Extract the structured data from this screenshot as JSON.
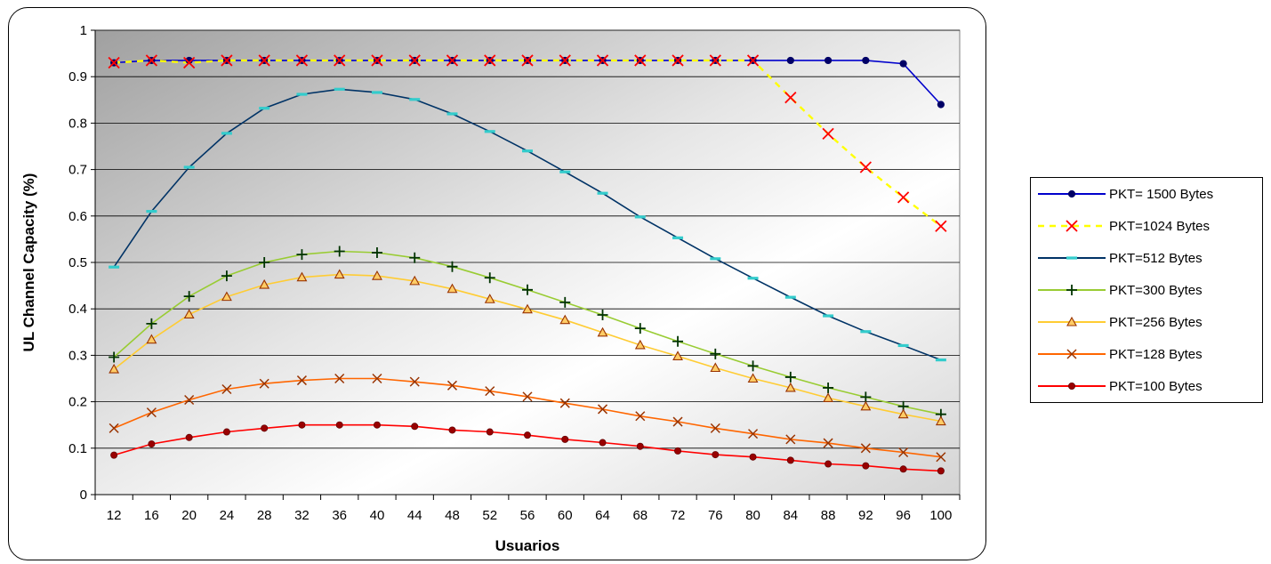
{
  "chart_data": {
    "type": "line",
    "title": "",
    "xlabel": "Usuarios",
    "ylabel": "UL Channel Capacity (%)",
    "ylim": [
      0,
      1
    ],
    "yticks": [
      "0",
      "0.1",
      "0.2",
      "0.3",
      "0.4",
      "0.5",
      "0.6",
      "0.7",
      "0.8",
      "0.9",
      "1"
    ],
    "categories": [
      "12",
      "16",
      "20",
      "24",
      "28",
      "32",
      "36",
      "40",
      "44",
      "48",
      "52",
      "56",
      "60",
      "64",
      "68",
      "72",
      "76",
      "80",
      "84",
      "88",
      "92",
      "96",
      "100"
    ],
    "grid": true,
    "legend_position": "right",
    "series": [
      {
        "name": "PKT= 1500 Bytes",
        "color": "#0000cc",
        "marker": "dot",
        "dash": false,
        "values": [
          0.93,
          0.935,
          0.935,
          0.935,
          0.935,
          0.935,
          0.935,
          0.935,
          0.935,
          0.935,
          0.935,
          0.935,
          0.935,
          0.935,
          0.935,
          0.935,
          0.935,
          0.935,
          0.935,
          0.935,
          0.935,
          0.928,
          0.84
        ]
      },
      {
        "name": "PKT=1024 Bytes",
        "color": "#ffff00",
        "marker": "x-red",
        "dash": true,
        "values": [
          0.93,
          0.935,
          0.93,
          0.935,
          0.935,
          0.935,
          0.935,
          0.935,
          0.935,
          0.935,
          0.935,
          0.935,
          0.935,
          0.935,
          0.935,
          0.935,
          0.935,
          0.935,
          0.855,
          0.777,
          0.705,
          0.64,
          0.578
        ]
      },
      {
        "name": "PKT=512 Bytes",
        "color": "#003366",
        "marker": "dash-cyan",
        "dash": false,
        "values": [
          0.49,
          0.61,
          0.705,
          0.778,
          0.832,
          0.862,
          0.873,
          0.866,
          0.851,
          0.82,
          0.782,
          0.74,
          0.695,
          0.649,
          0.598,
          0.553,
          0.508,
          0.466,
          0.425,
          0.385,
          0.351,
          0.321,
          0.29
        ]
      },
      {
        "name": "PKT=300 Bytes",
        "color": "#99cc33",
        "marker": "plus",
        "dash": false,
        "values": [
          0.296,
          0.368,
          0.427,
          0.471,
          0.5,
          0.517,
          0.524,
          0.521,
          0.51,
          0.491,
          0.467,
          0.441,
          0.414,
          0.387,
          0.358,
          0.33,
          0.303,
          0.277,
          0.253,
          0.23,
          0.21,
          0.19,
          0.173
        ]
      },
      {
        "name": "PKT=256 Bytes",
        "color": "#ffcc33",
        "marker": "triangle",
        "dash": false,
        "values": [
          0.27,
          0.334,
          0.388,
          0.426,
          0.452,
          0.468,
          0.474,
          0.471,
          0.46,
          0.443,
          0.421,
          0.399,
          0.376,
          0.349,
          0.322,
          0.298,
          0.273,
          0.25,
          0.23,
          0.208,
          0.19,
          0.173,
          0.158
        ]
      },
      {
        "name": "PKT=128 Bytes",
        "color": "#ff6600",
        "marker": "x-brown",
        "dash": false,
        "values": [
          0.143,
          0.177,
          0.204,
          0.227,
          0.239,
          0.246,
          0.25,
          0.25,
          0.243,
          0.235,
          0.223,
          0.211,
          0.197,
          0.184,
          0.169,
          0.157,
          0.143,
          0.131,
          0.119,
          0.111,
          0.1,
          0.091,
          0.081
        ]
      },
      {
        "name": "PKT=100 Bytes",
        "color": "#ff0000",
        "marker": "dot-dark",
        "dash": false,
        "values": [
          0.085,
          0.109,
          0.123,
          0.135,
          0.143,
          0.15,
          0.15,
          0.15,
          0.147,
          0.139,
          0.135,
          0.128,
          0.119,
          0.112,
          0.104,
          0.094,
          0.086,
          0.081,
          0.074,
          0.066,
          0.062,
          0.055,
          0.051
        ]
      }
    ]
  }
}
